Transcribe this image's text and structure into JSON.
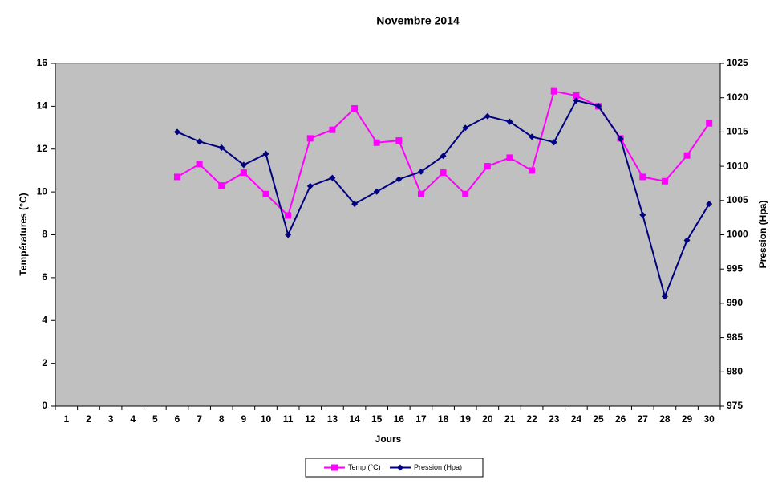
{
  "chart_data": {
    "type": "line",
    "title": "Novembre 2014",
    "x_label": "Jours",
    "y_label": "Températures (°C)",
    "y2_label": "Pression (Hpa)",
    "categories": [
      "1",
      "2",
      "3",
      "4",
      "5",
      "6",
      "7",
      "8",
      "9",
      "10",
      "11",
      "12",
      "13",
      "14",
      "15",
      "16",
      "17",
      "18",
      "19",
      "20",
      "21",
      "22",
      "23",
      "24",
      "25",
      "26",
      "27",
      "28",
      "29",
      "30"
    ],
    "series": [
      {
        "name": "Temp (°C)",
        "color": "#ff00ff",
        "marker": "square",
        "values": [
          null,
          null,
          null,
          null,
          null,
          10.7,
          11.3,
          10.3,
          10.9,
          9.9,
          8.9,
          12.5,
          12.9,
          13.9,
          12.3,
          12.4,
          9.9,
          10.9,
          9.9,
          11.2,
          11.6,
          11.0,
          14.7,
          14.5,
          14.0,
          12.5,
          10.7,
          10.5,
          11.7,
          13.2
        ]
      },
      {
        "name": "Pression (Hpa)",
        "color": "#000080",
        "marker": "diamond",
        "axis": "y2",
        "values": [
          null,
          null,
          null,
          null,
          null,
          1015,
          1013.6,
          1012.7,
          1010.2,
          1011.8,
          1000,
          1007.1,
          1008.3,
          1004.5,
          1006.3,
          1008.1,
          1009.2,
          1011.5,
          1015.6,
          1017.3,
          1016.5,
          1014.3,
          1013.5,
          1019.6,
          1018.8,
          1014,
          1002.9,
          991,
          999.2,
          1004.5
        ]
      }
    ],
    "ylim": [
      0,
      16
    ],
    "yticks": [
      0,
      2,
      4,
      6,
      8,
      10,
      12,
      14,
      16
    ],
    "y2lim": [
      975,
      1025
    ],
    "y2ticks": [
      975,
      980,
      985,
      990,
      995,
      1000,
      1005,
      1010,
      1015,
      1020,
      1025
    ],
    "grid": false,
    "plot_background": "#c0c0c0",
    "legend": "bottom"
  }
}
